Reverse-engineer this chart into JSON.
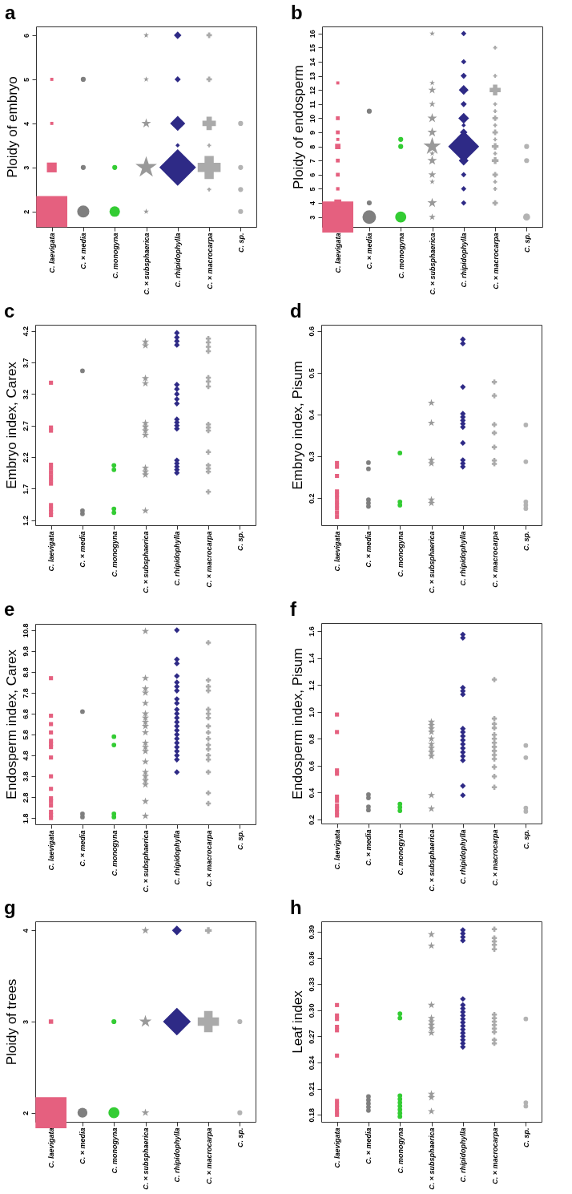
{
  "chart_data": [
    {
      "type": "bubble",
      "title": "a",
      "ylabel": "Ploidy of embryo",
      "categories": [
        "C. laevigata",
        "C. × media",
        "C. monogyna",
        "C. × subsphaerica",
        "C. rhipidophylla",
        "C. × macrocarpa",
        "C. sp."
      ],
      "ylim": [
        1.65,
        6.2
      ],
      "yticks": [
        2,
        3,
        4,
        5,
        6
      ],
      "series": [
        {
          "color": "#e5607f",
          "marker": "square",
          "x": [
            "C. laevigata",
            "C. laevigata",
            "C. laevigata",
            "C. laevigata"
          ],
          "values": [
            2,
            3,
            4,
            5
          ],
          "sizes": [
            1,
            0.1,
            0.01,
            0.01
          ]
        },
        {
          "color": "#7f7f7f",
          "marker": "circle",
          "x": [
            "C. × media",
            "C. × media",
            "C. × media"
          ],
          "values": [
            2,
            3,
            5
          ],
          "sizes": [
            0.12,
            0.02,
            0.02
          ]
        },
        {
          "color": "#33cc33",
          "marker": "circle",
          "x": [
            "C. monogyna",
            "C. monogyna"
          ],
          "values": [
            2,
            3
          ],
          "sizes": [
            0.09,
            0.02
          ]
        },
        {
          "color": "#999999",
          "marker": "star",
          "x": [
            "C. × subsphaerica",
            "C. × subsphaerica",
            "C. × subsphaerica",
            "C. × subsphaerica",
            "C. × subsphaerica"
          ],
          "values": [
            2,
            3,
            4,
            5,
            6
          ],
          "sizes": [
            0.01,
            0.15,
            0.03,
            0.01,
            0.01
          ]
        },
        {
          "color": "#2e2a86",
          "marker": "diamond",
          "x": [
            "C. rhipidophylla",
            "C. rhipidophylla",
            "C. rhipidophylla",
            "C. rhipidophylla",
            "C. rhipidophylla"
          ],
          "values": [
            3,
            3.5,
            4,
            5,
            6
          ],
          "sizes": [
            0.7,
            0.01,
            0.12,
            0.02,
            0.03
          ]
        },
        {
          "color": "#aaaaaa",
          "marker": "cross",
          "x": [
            "C. × macrocarpa",
            "C. × macrocarpa",
            "C. × macrocarpa",
            "C. × macrocarpa",
            "C. × macrocarpa",
            "C. × macrocarpa"
          ],
          "values": [
            2.5,
            3,
            3.5,
            4,
            5,
            6
          ],
          "sizes": [
            0.01,
            0.35,
            0.01,
            0.12,
            0.02,
            0.02
          ]
        },
        {
          "color": "#b3b3b3",
          "marker": "circle",
          "x": [
            "C. sp.",
            "C. sp.",
            "C. sp.",
            "C. sp."
          ],
          "values": [
            2,
            2.5,
            3,
            4
          ],
          "sizes": [
            0.02,
            0.02,
            0.02,
            0.02
          ]
        }
      ]
    },
    {
      "type": "bubble",
      "title": "b",
      "ylabel": "Ploidy of endosperm",
      "categories": [
        "C. laevigata",
        "C. × media",
        "C. monogyna",
        "C. × subsphaerica",
        "C. rhipidophylla",
        "C. × macrocarpa",
        "C. sp."
      ],
      "ylim": [
        2.3,
        16.5
      ],
      "yticks": [
        3,
        4,
        5,
        6,
        7,
        8,
        9,
        10,
        11,
        12,
        13,
        14,
        15,
        16
      ],
      "series": [
        {
          "color": "#e5607f",
          "marker": "square",
          "x": [
            "C. laevigata",
            "C. laevigata",
            "C. laevigata",
            "C. laevigata",
            "C. laevigata",
            "C. laevigata",
            "C. laevigata",
            "C. laevigata",
            "C. laevigata",
            "C. laevigata"
          ],
          "values": [
            3,
            4,
            5,
            6,
            7,
            8,
            8.5,
            9,
            10,
            12.5
          ],
          "sizes": [
            1,
            0.05,
            0.012,
            0.015,
            0.015,
            0.03,
            0.01,
            0.015,
            0.015,
            0.01
          ]
        },
        {
          "color": "#7f7f7f",
          "marker": "circle",
          "x": [
            "C. × media",
            "C. × media",
            "C. × media"
          ],
          "values": [
            3,
            4,
            10.5
          ],
          "sizes": [
            0.15,
            0.02,
            0.02
          ]
        },
        {
          "color": "#33cc33",
          "marker": "circle",
          "x": [
            "C. monogyna",
            "C. monogyna",
            "C. monogyna"
          ],
          "values": [
            3,
            8,
            8.5
          ],
          "sizes": [
            0.1,
            0.02,
            0.02
          ]
        },
        {
          "color": "#999999",
          "marker": "star",
          "x": [
            "C. × subsphaerica",
            "C. × subsphaerica",
            "C. × subsphaerica",
            "C. × subsphaerica",
            "C. × subsphaerica",
            "C. × subsphaerica",
            "C. × subsphaerica",
            "C. × subsphaerica",
            "C. × subsphaerica",
            "C. × subsphaerica",
            "C. × subsphaerica",
            "C. × subsphaerica",
            "C. × subsphaerica"
          ],
          "values": [
            3,
            4,
            5.5,
            6,
            7,
            7.5,
            8,
            9,
            10,
            11,
            12,
            12.5,
            16
          ],
          "sizes": [
            0.015,
            0.03,
            0.01,
            0.02,
            0.03,
            0.01,
            0.1,
            0.03,
            0.03,
            0.015,
            0.02,
            0.01,
            0.01
          ]
        },
        {
          "color": "#2e2a86",
          "marker": "diamond",
          "x": [
            "C. rhipidophylla",
            "C. rhipidophylla",
            "C. rhipidophylla",
            "C. rhipidophylla",
            "C. rhipidophylla",
            "C. rhipidophylla",
            "C. rhipidophylla",
            "C. rhipidophylla",
            "C. rhipidophylla",
            "C. rhipidophylla",
            "C. rhipidophylla",
            "C. rhipidophylla",
            "C. rhipidophylla"
          ],
          "values": [
            4,
            5,
            6,
            7,
            8,
            9,
            9.5,
            10,
            11,
            12,
            13,
            14,
            16
          ],
          "sizes": [
            0.015,
            0.015,
            0.015,
            0.05,
            0.5,
            0.03,
            0.01,
            0.06,
            0.02,
            0.05,
            0.02,
            0.015,
            0.015
          ]
        },
        {
          "color": "#aaaaaa",
          "marker": "cross",
          "x": [
            "C. × macrocarpa",
            "C. × macrocarpa",
            "C. × macrocarpa",
            "C. × macrocarpa",
            "C. × macrocarpa",
            "C. × macrocarpa",
            "C. × macrocarpa",
            "C. × macrocarpa",
            "C. × macrocarpa",
            "C. × macrocarpa",
            "C. × macrocarpa",
            "C. × macrocarpa",
            "C. × macrocarpa",
            "C. × macrocarpa",
            "C. × macrocarpa",
            "C. × macrocarpa"
          ],
          "values": [
            4,
            5,
            5.5,
            6,
            7,
            7.5,
            8,
            8.5,
            9,
            9.5,
            10,
            10.5,
            11,
            12,
            13,
            15
          ],
          "sizes": [
            0.02,
            0.01,
            0.01,
            0.02,
            0.03,
            0.01,
            0.03,
            0.01,
            0.02,
            0.01,
            0.02,
            0.01,
            0.01,
            0.08,
            0.01,
            0.01
          ]
        },
        {
          "color": "#b3b3b3",
          "marker": "circle",
          "x": [
            "C. sp.",
            "C. sp.",
            "C. sp."
          ],
          "values": [
            3,
            7,
            8
          ],
          "sizes": [
            0.04,
            0.02,
            0.02
          ]
        }
      ]
    },
    {
      "type": "scatter",
      "title": "c",
      "ylabel": "Embryo index, Carex",
      "categories": [
        "C. laevigata",
        "C. × media",
        "C. monogyna",
        "C. × subsphaerica",
        "C. rhipidophylla",
        "C. × macrocarpa",
        "C. sp."
      ],
      "ylim": [
        1.12,
        4.3
      ],
      "yticks": [
        1.2,
        1.7,
        2.2,
        2.7,
        3.2,
        3.7,
        4.2
      ],
      "series": [
        {
          "color": "#e5607f",
          "marker": "square",
          "x": [
            "C. laevigata",
            "C. laevigata",
            "C. laevigata",
            "C. laevigata",
            "C. laevigata",
            "C. laevigata",
            "C. laevigata",
            "C. laevigata",
            "C. laevigata",
            "C. laevigata",
            "C. laevigata",
            "C. laevigata",
            "C. laevigata"
          ],
          "values": [
            1.28,
            1.33,
            1.38,
            1.44,
            1.78,
            1.84,
            1.9,
            1.96,
            2.02,
            2.08,
            2.62,
            2.67,
            3.38
          ]
        },
        {
          "color": "#7f7f7f",
          "marker": "circle",
          "x": [
            "C. × media",
            "C. × media",
            "C. × media"
          ],
          "values": [
            1.3,
            1.35,
            3.57
          ]
        },
        {
          "color": "#33cc33",
          "marker": "circle",
          "x": [
            "C. monogyna",
            "C. monogyna",
            "C. monogyna",
            "C. monogyna"
          ],
          "values": [
            1.32,
            1.38,
            2.0,
            2.07
          ]
        },
        {
          "color": "#999999",
          "marker": "star",
          "x": [
            "C. × subsphaerica",
            "C. × subsphaerica",
            "C. × subsphaerica",
            "C. × subsphaerica",
            "C. × subsphaerica",
            "C. × subsphaerica",
            "C. × subsphaerica",
            "C. × subsphaerica",
            "C. × subsphaerica",
            "C. × subsphaerica",
            "C. × subsphaerica",
            "C. × subsphaerica"
          ],
          "values": [
            1.35,
            1.92,
            1.97,
            2.03,
            2.55,
            2.62,
            2.68,
            2.74,
            3.37,
            3.45,
            3.97,
            4.03
          ]
        },
        {
          "color": "#2e2a86",
          "marker": "diamond",
          "x": [
            "C. rhipidophylla",
            "C. rhipidophylla",
            "C. rhipidophylla",
            "C. rhipidophylla",
            "C. rhipidophylla",
            "C. rhipidophylla",
            "C. rhipidophylla",
            "C. rhipidophylla",
            "C. rhipidophylla",
            "C. rhipidophylla",
            "C. rhipidophylla",
            "C. rhipidophylla",
            "C. rhipidophylla",
            "C. rhipidophylla",
            "C. rhipidophylla",
            "C. rhipidophylla",
            "C. rhipidophylla",
            "C. rhipidophylla"
          ],
          "values": [
            1.95,
            2.0,
            2.05,
            2.1,
            2.15,
            2.65,
            2.7,
            2.75,
            2.8,
            3.05,
            3.12,
            3.2,
            3.28,
            3.35,
            3.98,
            4.04,
            4.1,
            4.17
          ]
        },
        {
          "color": "#aaaaaa",
          "marker": "cross",
          "x": [
            "C. × macrocarpa",
            "C. × macrocarpa",
            "C. × macrocarpa",
            "C. × macrocarpa",
            "C. × macrocarpa",
            "C. × macrocarpa",
            "C. × macrocarpa",
            "C. × macrocarpa",
            "C. × macrocarpa",
            "C. × macrocarpa",
            "C. × macrocarpa",
            "C. × macrocarpa",
            "C. × macrocarpa",
            "C. × macrocarpa",
            "C. × macrocarpa"
          ],
          "values": [
            1.65,
            1.97,
            2.02,
            2.07,
            2.28,
            2.62,
            2.67,
            2.72,
            3.32,
            3.4,
            3.46,
            3.88,
            3.95,
            4.02,
            4.08
          ]
        }
      ]
    },
    {
      "type": "scatter",
      "title": "d",
      "ylabel": "Embryo index, Pisum",
      "categories": [
        "C. laevigata",
        "C. × media",
        "C. monogyna",
        "C. × subsphaerica",
        "C. rhipidophylla",
        "C. × macrocarpa",
        "C. sp."
      ],
      "ylim": [
        0.135,
        0.615
      ],
      "yticks": [
        0.2,
        0.3,
        0.4,
        0.5,
        0.6
      ],
      "series": [
        {
          "color": "#e5607f",
          "marker": "square",
          "x": [
            "C. laevigata",
            "C. laevigata",
            "C. laevigata",
            "C. laevigata",
            "C. laevigata",
            "C. laevigata",
            "C. laevigata",
            "C. laevigata",
            "C. laevigata",
            "C. laevigata",
            "C. laevigata"
          ],
          "values": [
            0.155,
            0.165,
            0.175,
            0.183,
            0.191,
            0.2,
            0.208,
            0.216,
            0.253,
            0.275,
            0.284
          ]
        },
        {
          "color": "#7f7f7f",
          "marker": "circle",
          "x": [
            "C. × media",
            "C. × media",
            "C. × media",
            "C. × media",
            "C. × media"
          ],
          "values": [
            0.18,
            0.188,
            0.196,
            0.27,
            0.285
          ]
        },
        {
          "color": "#33cc33",
          "marker": "circle",
          "x": [
            "C. monogyna",
            "C. monogyna",
            "C. monogyna"
          ],
          "values": [
            0.183,
            0.191,
            0.308
          ]
        },
        {
          "color": "#999999",
          "marker": "star",
          "x": [
            "C. × subsphaerica",
            "C. × subsphaerica",
            "C. × subsphaerica",
            "C. × subsphaerica",
            "C. × subsphaerica",
            "C. × subsphaerica"
          ],
          "values": [
            0.188,
            0.196,
            0.283,
            0.291,
            0.38,
            0.428
          ]
        },
        {
          "color": "#2e2a86",
          "marker": "diamond",
          "x": [
            "C. rhipidophylla",
            "C. rhipidophylla",
            "C. rhipidophylla",
            "C. rhipidophylla",
            "C. rhipidophylla",
            "C. rhipidophylla",
            "C. rhipidophylla",
            "C. rhipidophylla",
            "C. rhipidophylla",
            "C. rhipidophylla",
            "C. rhipidophylla",
            "C. rhipidophylla"
          ],
          "values": [
            0.275,
            0.283,
            0.291,
            0.332,
            0.37,
            0.378,
            0.386,
            0.394,
            0.402,
            0.466,
            0.57,
            0.58
          ]
        },
        {
          "color": "#aaaaaa",
          "marker": "cross",
          "x": [
            "C. × macrocarpa",
            "C. × macrocarpa",
            "C. × macrocarpa",
            "C. × macrocarpa",
            "C. × macrocarpa",
            "C. × macrocarpa",
            "C. × macrocarpa"
          ],
          "values": [
            0.282,
            0.29,
            0.322,
            0.356,
            0.376,
            0.445,
            0.478
          ]
        },
        {
          "color": "#b3b3b3",
          "marker": "circle",
          "x": [
            "C. sp.",
            "C. sp.",
            "C. sp.",
            "C. sp.",
            "C. sp."
          ],
          "values": [
            0.175,
            0.183,
            0.191,
            0.287,
            0.375
          ]
        }
      ]
    },
    {
      "type": "scatter",
      "title": "e",
      "ylabel": "Endosperm index, Carex",
      "categories": [
        "C. laevigata",
        "C. × media",
        "C. monogyna",
        "C. × subsphaerica",
        "C. rhipidophylla",
        "C. × macrocarpa",
        "C. sp."
      ],
      "ylim": [
        1.5,
        11.1
      ],
      "yticks": [
        1.8,
        2.8,
        3.8,
        4.8,
        5.8,
        6.8,
        7.8,
        8.8,
        9.8,
        10.8
      ],
      "series": [
        {
          "color": "#e5607f",
          "marker": "square",
          "x": [
            "C. laevigata",
            "C. laevigata",
            "C. laevigata",
            "C. laevigata",
            "C. laevigata",
            "C. laevigata",
            "C. laevigata",
            "C. laevigata",
            "C. laevigata",
            "C. laevigata",
            "C. laevigata",
            "C. laevigata",
            "C. laevigata",
            "C. laevigata",
            "C. laevigata",
            "C. laevigata"
          ],
          "values": [
            1.8,
            1.95,
            2.1,
            2.4,
            2.6,
            2.75,
            3.2,
            3.8,
            4.7,
            5.2,
            5.35,
            5.5,
            5.9,
            6.3,
            6.7,
            8.5
          ]
        },
        {
          "color": "#7f7f7f",
          "marker": "circle",
          "x": [
            "C. × media",
            "C. × media",
            "C. × media"
          ],
          "values": [
            1.85,
            2.0,
            6.9
          ]
        },
        {
          "color": "#33cc33",
          "marker": "circle",
          "x": [
            "C. monogyna",
            "C. monogyna",
            "C. monogyna",
            "C. monogyna"
          ],
          "values": [
            1.85,
            2.0,
            5.3,
            5.7
          ]
        },
        {
          "color": "#999999",
          "marker": "star",
          "x": [
            "C. × subsphaerica",
            "C. × subsphaerica",
            "C. × subsphaerica",
            "C. × subsphaerica",
            "C. × subsphaerica",
            "C. × subsphaerica",
            "C. × subsphaerica",
            "C. × subsphaerica",
            "C. × subsphaerica",
            "C. × subsphaerica",
            "C. × subsphaerica",
            "C. × subsphaerica",
            "C. × subsphaerica",
            "C. × subsphaerica",
            "C. × subsphaerica",
            "C. × subsphaerica",
            "C. × subsphaerica",
            "C. × subsphaerica",
            "C. × subsphaerica",
            "C. × subsphaerica"
          ],
          "values": [
            1.9,
            2.6,
            3.4,
            3.6,
            3.8,
            4.0,
            4.5,
            5.0,
            5.2,
            5.4,
            5.9,
            6.2,
            6.4,
            6.6,
            6.8,
            7.3,
            7.8,
            8.0,
            8.5,
            10.75
          ]
        },
        {
          "color": "#2e2a86",
          "marker": "diamond",
          "x": [
            "C. rhipidophylla",
            "C. rhipidophylla",
            "C. rhipidophylla",
            "C. rhipidophylla",
            "C. rhipidophylla",
            "C. rhipidophylla",
            "C. rhipidophylla",
            "C. rhipidophylla",
            "C. rhipidophylla",
            "C. rhipidophylla",
            "C. rhipidophylla",
            "C. rhipidophylla",
            "C. rhipidophylla",
            "C. rhipidophylla",
            "C. rhipidophylla",
            "C. rhipidophylla",
            "C. rhipidophylla",
            "C. rhipidophylla",
            "C. rhipidophylla",
            "C. rhipidophylla",
            "C. rhipidophylla",
            "C. rhipidophylla",
            "C. rhipidophylla"
          ],
          "values": [
            4.0,
            4.6,
            4.8,
            5.0,
            5.2,
            5.4,
            5.6,
            5.8,
            6.0,
            6.2,
            6.4,
            6.6,
            6.8,
            7.0,
            7.3,
            7.5,
            7.9,
            8.1,
            8.3,
            8.6,
            9.2,
            9.4,
            10.8
          ]
        },
        {
          "color": "#aaaaaa",
          "marker": "cross",
          "x": [
            "C. × macrocarpa",
            "C. × macrocarpa",
            "C. × macrocarpa",
            "C. × macrocarpa",
            "C. × macrocarpa",
            "C. × macrocarpa",
            "C. × macrocarpa",
            "C. × macrocarpa",
            "C. × macrocarpa",
            "C. × macrocarpa",
            "C. × macrocarpa",
            "C. × macrocarpa",
            "C. × macrocarpa",
            "C. × macrocarpa",
            "C. × macrocarpa",
            "C. × macrocarpa",
            "C. × macrocarpa"
          ],
          "values": [
            2.5,
            3.0,
            4.0,
            4.6,
            4.8,
            5.1,
            5.3,
            5.6,
            5.9,
            6.2,
            6.6,
            6.8,
            7.0,
            7.9,
            8.1,
            8.4,
            10.2
          ]
        }
      ]
    },
    {
      "type": "scatter",
      "title": "f",
      "ylabel": "Endosperm index, Pisum",
      "categories": [
        "C. laevigata",
        "C. × media",
        "C. monogyna",
        "C. × subsphaerica",
        "C. rhipidophylla",
        "C. × macrocarpa",
        "C. sp."
      ],
      "ylim": [
        0.17,
        1.66
      ],
      "yticks": [
        0.2,
        0.4,
        0.6,
        0.8,
        {
          "value": 1,
          "label": "1.0"
        },
        1.2,
        1.4,
        1.6
      ],
      "series": [
        {
          "color": "#e5607f",
          "marker": "square",
          "x": [
            "C. laevigata",
            "C. laevigata",
            "C. laevigata",
            "C. laevigata",
            "C. laevigata",
            "C. laevigata",
            "C. laevigata",
            "C. laevigata",
            "C. laevigata",
            "C. laevigata"
          ],
          "values": [
            0.23,
            0.255,
            0.28,
            0.305,
            0.34,
            0.37,
            0.54,
            0.565,
            0.85,
            0.98
          ]
        },
        {
          "color": "#7f7f7f",
          "marker": "circle",
          "x": [
            "C. × media",
            "C. × media",
            "C. × media",
            "C. × media"
          ],
          "values": [
            0.27,
            0.295,
            0.36,
            0.385
          ]
        },
        {
          "color": "#33cc33",
          "marker": "circle",
          "x": [
            "C. monogyna",
            "C. monogyna",
            "C. monogyna"
          ],
          "values": [
            0.265,
            0.29,
            0.315
          ]
        },
        {
          "color": "#999999",
          "marker": "star",
          "x": [
            "C. × subsphaerica",
            "C. × subsphaerica",
            "C. × subsphaerica",
            "C. × subsphaerica",
            "C. × subsphaerica",
            "C. × subsphaerica",
            "C. × subsphaerica",
            "C. × subsphaerica",
            "C. × subsphaerica",
            "C. × subsphaerica",
            "C. × subsphaerica"
          ],
          "values": [
            0.28,
            0.38,
            0.67,
            0.7,
            0.73,
            0.76,
            0.8,
            0.85,
            0.875,
            0.9,
            0.925
          ]
        },
        {
          "color": "#2e2a86",
          "marker": "diamond",
          "x": [
            "C. rhipidophylla",
            "C. rhipidophylla",
            "C. rhipidophylla",
            "C. rhipidophylla",
            "C. rhipidophylla",
            "C. rhipidophylla",
            "C. rhipidophylla",
            "C. rhipidophylla",
            "C. rhipidophylla",
            "C. rhipidophylla",
            "C. rhipidophylla",
            "C. rhipidophylla",
            "C. rhipidophylla",
            "C. rhipidophylla",
            "C. rhipidophylla",
            "C. rhipidophylla"
          ],
          "values": [
            0.38,
            0.45,
            0.64,
            0.67,
            0.7,
            0.73,
            0.76,
            0.79,
            0.82,
            0.85,
            0.875,
            1.13,
            1.155,
            1.18,
            1.55,
            1.575
          ]
        },
        {
          "color": "#aaaaaa",
          "marker": "cross",
          "x": [
            "C. × macrocarpa",
            "C. × macrocarpa",
            "C. × macrocarpa",
            "C. × macrocarpa",
            "C. × macrocarpa",
            "C. × macrocarpa",
            "C. × macrocarpa",
            "C. × macrocarpa",
            "C. × macrocarpa",
            "C. × macrocarpa",
            "C. × macrocarpa",
            "C. × macrocarpa",
            "C. × macrocarpa",
            "C. × macrocarpa"
          ],
          "values": [
            0.44,
            0.52,
            0.59,
            0.65,
            0.68,
            0.71,
            0.74,
            0.77,
            0.8,
            0.83,
            0.88,
            0.91,
            0.95,
            1.24
          ]
        },
        {
          "color": "#b3b3b3",
          "marker": "circle",
          "x": [
            "C. sp.",
            "C. sp.",
            "C. sp.",
            "C. sp."
          ],
          "values": [
            0.26,
            0.285,
            0.66,
            0.75
          ]
        }
      ]
    },
    {
      "type": "bubble",
      "title": "g",
      "ylabel": "Ploidy of trees",
      "categories": [
        "C. laevigata",
        "C. × media",
        "C. monogyna",
        "C. × subsphaerica",
        "C. rhipidophylla",
        "C. × macrocarpa",
        "C. sp."
      ],
      "ylim": [
        1.9,
        4.1
      ],
      "yticks": [
        2,
        3,
        4
      ],
      "series": [
        {
          "color": "#e5607f",
          "marker": "square",
          "x": [
            "C. laevigata",
            "C. laevigata"
          ],
          "values": [
            2,
            3
          ],
          "sizes": [
            1,
            0.02
          ]
        },
        {
          "color": "#7f7f7f",
          "marker": "circle",
          "x": [
            "C. × media"
          ],
          "values": [
            2
          ],
          "sizes": [
            0.08
          ]
        },
        {
          "color": "#33cc33",
          "marker": "circle",
          "x": [
            "C. monogyna",
            "C. monogyna"
          ],
          "values": [
            2,
            3
          ],
          "sizes": [
            0.1,
            0.02
          ]
        },
        {
          "color": "#999999",
          "marker": "star",
          "x": [
            "C. × subsphaerica",
            "C. × subsphaerica",
            "C. × subsphaerica"
          ],
          "values": [
            2,
            3,
            4
          ],
          "sizes": [
            0.02,
            0.05,
            0.02
          ]
        },
        {
          "color": "#2e2a86",
          "marker": "diamond",
          "x": [
            "C. rhipidophylla",
            "C. rhipidophylla"
          ],
          "values": [
            3,
            4
          ],
          "sizes": [
            0.4,
            0.05
          ]
        },
        {
          "color": "#aaaaaa",
          "marker": "cross",
          "x": [
            "C. × macrocarpa",
            "C. × macrocarpa"
          ],
          "values": [
            3,
            4
          ],
          "sizes": [
            0.3,
            0.03
          ]
        },
        {
          "color": "#b3b3b3",
          "marker": "circle",
          "x": [
            "C. sp.",
            "C. sp."
          ],
          "values": [
            2,
            3
          ],
          "sizes": [
            0.02,
            0.02
          ]
        }
      ]
    },
    {
      "type": "scatter",
      "title": "h",
      "ylabel": "Leaf index",
      "categories": [
        "C. laevigata",
        "C. × media",
        "C. monogyna",
        "C. × subsphaerica",
        "C. rhipidophylla",
        "C. × macrocarpa",
        "C. sp."
      ],
      "ylim": [
        0.172,
        0.402
      ],
      "yticks": [
        0.18,
        0.21,
        0.24,
        0.27,
        {
          "value": 0.3,
          "label": "0.30"
        },
        0.33,
        0.36,
        0.39
      ],
      "series": [
        {
          "color": "#e5607f",
          "marker": "square",
          "x": [
            "C. laevigata",
            "C. laevigata",
            "C. laevigata",
            "C. laevigata",
            "C. laevigata",
            "C. laevigata",
            "C. laevigata",
            "C. laevigata",
            "C. laevigata",
            "C. laevigata",
            "C. laevigata"
          ],
          "values": [
            0.18,
            0.184,
            0.188,
            0.192,
            0.196,
            0.248,
            0.277,
            0.281,
            0.29,
            0.294,
            0.306
          ]
        },
        {
          "color": "#7f7f7f",
          "marker": "circle",
          "x": [
            "C. × media",
            "C. × media",
            "C. × media",
            "C. × media",
            "C. × media"
          ],
          "values": [
            0.185,
            0.189,
            0.193,
            0.197,
            0.201
          ]
        },
        {
          "color": "#33cc33",
          "marker": "circle",
          "x": [
            "C. monogyna",
            "C. monogyna",
            "C. monogyna",
            "C. monogyna",
            "C. monogyna",
            "C. monogyna",
            "C. monogyna",
            "C. monogyna",
            "C. monogyna"
          ],
          "values": [
            0.178,
            0.182,
            0.186,
            0.19,
            0.194,
            0.198,
            0.202,
            0.291,
            0.296
          ]
        },
        {
          "color": "#999999",
          "marker": "star",
          "x": [
            "C. × subsphaerica",
            "C. × subsphaerica",
            "C. × subsphaerica",
            "C. × subsphaerica",
            "C. × subsphaerica",
            "C. × subsphaerica",
            "C. × subsphaerica",
            "C. × subsphaerica",
            "C. × subsphaerica",
            "C. × subsphaerica",
            "C. × subsphaerica"
          ],
          "values": [
            0.184,
            0.2,
            0.204,
            0.274,
            0.279,
            0.283,
            0.287,
            0.291,
            0.306,
            0.374,
            0.387
          ]
        },
        {
          "color": "#2e2a86",
          "marker": "diamond",
          "x": [
            "C. rhipidophylla",
            "C. rhipidophylla",
            "C. rhipidophylla",
            "C. rhipidophylla",
            "C. rhipidophylla",
            "C. rhipidophylla",
            "C. rhipidophylla",
            "C. rhipidophylla",
            "C. rhipidophylla",
            "C. rhipidophylla",
            "C. rhipidophylla",
            "C. rhipidophylla",
            "C. rhipidophylla",
            "C. rhipidophylla",
            "C. rhipidophylla",
            "C. rhipidophylla",
            "C. rhipidophylla",
            "C. rhipidophylla"
          ],
          "values": [
            0.258,
            0.262,
            0.266,
            0.27,
            0.274,
            0.278,
            0.282,
            0.286,
            0.29,
            0.294,
            0.298,
            0.302,
            0.306,
            0.313,
            0.38,
            0.384,
            0.388,
            0.392
          ]
        },
        {
          "color": "#aaaaaa",
          "marker": "cross",
          "x": [
            "C. × macrocarpa",
            "C. × macrocarpa",
            "C. × macrocarpa",
            "C. × macrocarpa",
            "C. × macrocarpa",
            "C. × macrocarpa",
            "C. × macrocarpa",
            "C. × macrocarpa",
            "C. × macrocarpa",
            "C. × macrocarpa",
            "C. × macrocarpa",
            "C. × macrocarpa",
            "C. × macrocarpa"
          ],
          "values": [
            0.262,
            0.266,
            0.275,
            0.279,
            0.283,
            0.287,
            0.291,
            0.295,
            0.37,
            0.375,
            0.379,
            0.383,
            0.393
          ]
        },
        {
          "color": "#b3b3b3",
          "marker": "circle",
          "x": [
            "C. sp.",
            "C. sp.",
            "C. sp."
          ],
          "values": [
            0.19,
            0.194,
            0.29
          ]
        }
      ]
    }
  ]
}
